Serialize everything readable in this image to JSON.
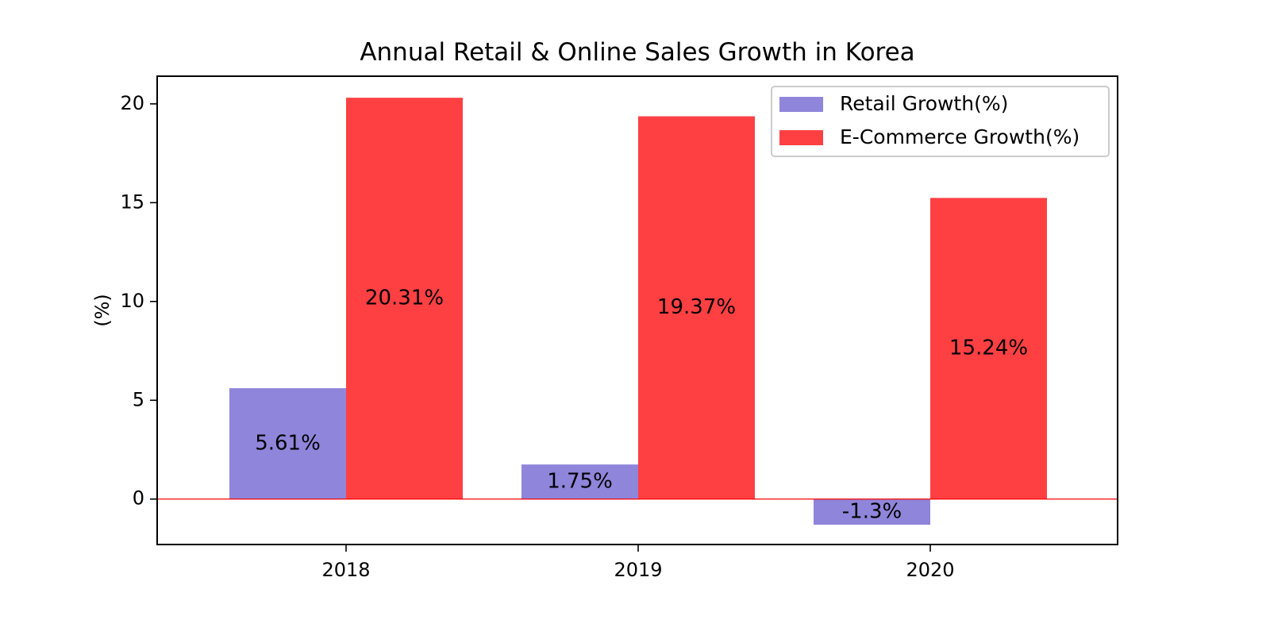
{
  "chart_data": {
    "type": "bar",
    "title": "Annual Retail & Online Sales Growth in Korea",
    "xlabel": "",
    "ylabel": "(%)",
    "categories": [
      "2018",
      "2019",
      "2020"
    ],
    "series": [
      {
        "name": "Retail Growth(%)",
        "values": [
          5.61,
          1.75,
          -1.3
        ],
        "labels": [
          "5.61%",
          "1.75%",
          "-1.3%"
        ],
        "color": "#8f85da"
      },
      {
        "name": "E-Commerce Growth(%)",
        "values": [
          20.31,
          19.37,
          15.24
        ],
        "labels": [
          "20.31%",
          "19.37%",
          "15.24%"
        ],
        "color": "#ff4043"
      }
    ],
    "ylim": [
      -2.3,
      21.4
    ],
    "yticks": [
      0,
      5,
      10,
      15,
      20
    ],
    "zero_line_color": "#ff0000",
    "legend_position": "top-right",
    "grid": false
  }
}
